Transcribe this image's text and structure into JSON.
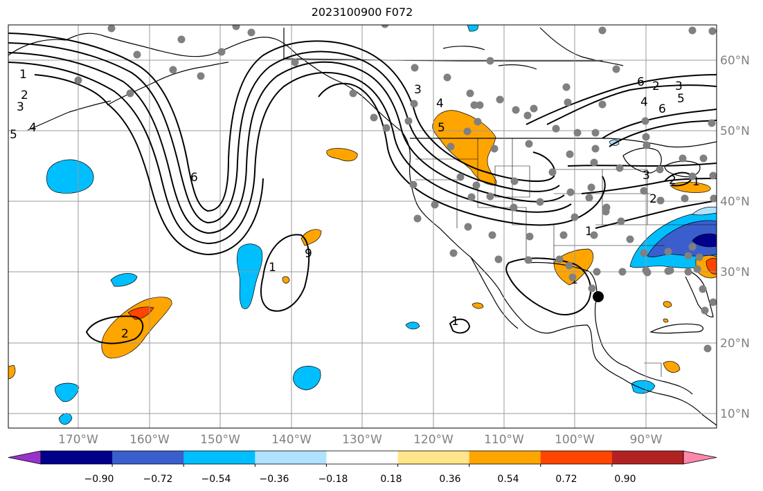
{
  "title": "2023100900 F072",
  "map": {
    "projection": "PlateCarree",
    "lon_range": [
      -180,
      -78
    ],
    "lat_range": [
      8,
      65
    ],
    "gridlines": true,
    "lon_ticks": [
      "170°W",
      "160°W",
      "150°W",
      "140°W",
      "130°W",
      "120°W",
      "110°W",
      "100°W",
      "90°W"
    ],
    "lat_ticks": [
      "60°N",
      "50°N",
      "40°N",
      "30°N",
      "20°N",
      "10°N"
    ],
    "tick_label_color": "#808080"
  },
  "contour_labels": [
    "1",
    "2",
    "3",
    "4",
    "5",
    "6",
    "9",
    "1",
    "2",
    "3",
    "4",
    "5",
    "6",
    "2",
    "3",
    "4",
    "5",
    "6",
    "3",
    "2",
    "1",
    "1",
    "1",
    "2",
    "1",
    "1"
  ],
  "colorbar": {
    "orientation": "horizontal",
    "extend": "both",
    "colors": [
      "#9932CC",
      "#00008B",
      "#3A5FCD",
      "#00BFFF",
      "#B0E2FF",
      "#FFFFFF",
      "#FFE68A",
      "#FFA500",
      "#FF4500",
      "#B22222",
      "#FF88AA"
    ],
    "tick_labels": [
      "−0.90",
      "−0.72",
      "−0.54",
      "−0.36",
      "−0.18",
      "0.18",
      "0.36",
      "0.54",
      "0.72",
      "0.90"
    ]
  },
  "stations": {
    "marker_color": "#808080",
    "highlight_color": "#000000"
  }
}
